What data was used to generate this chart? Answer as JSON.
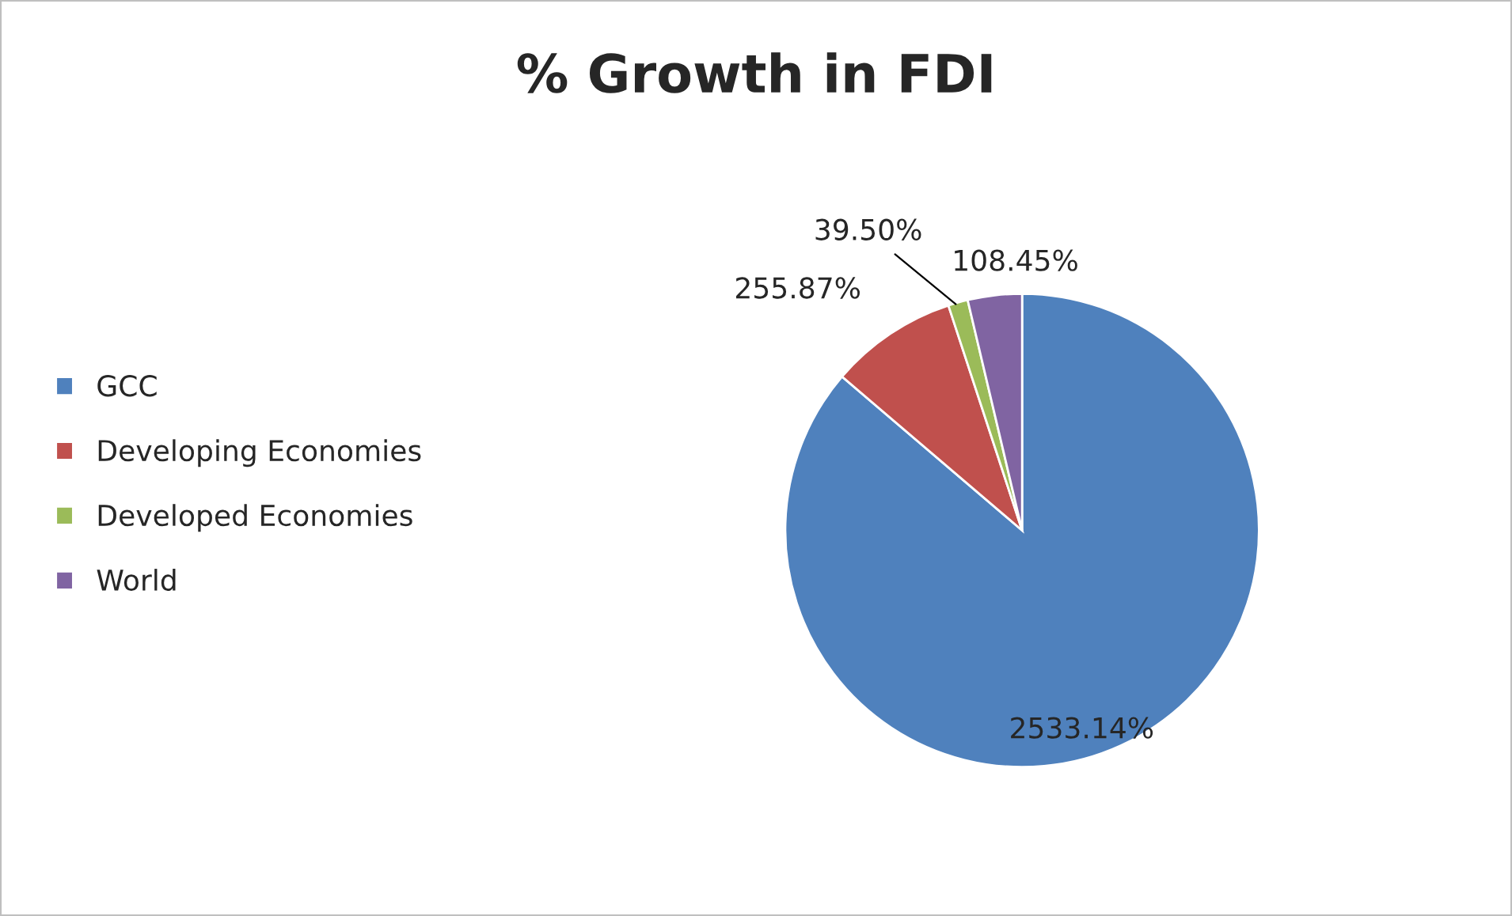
{
  "chart_data": {
    "type": "pie",
    "title": "% Growth in FDI",
    "categories": [
      "GCC",
      "Developing Economies",
      "Developed Economies",
      "World"
    ],
    "values": [
      2533.14,
      255.87,
      39.5,
      108.45
    ],
    "value_labels": [
      "2533.14%",
      "255.87%",
      "39.50%",
      "108.45%"
    ],
    "colors": [
      "#4f81bd",
      "#c0504d",
      "#9bbb59",
      "#8064a2"
    ],
    "legend": "left"
  }
}
